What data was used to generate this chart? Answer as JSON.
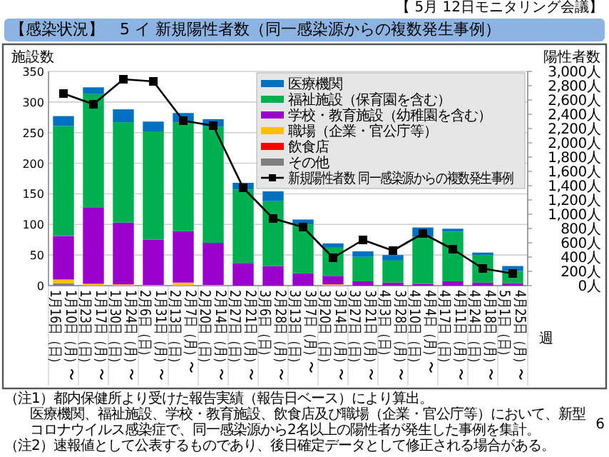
{
  "chart_data": {
    "type": "bar",
    "stacked": true,
    "title": "【感染状況】　5 イ 新規陽性者数（同一感染源からの複数発生事例）",
    "subtitle": "【 5月 12日モニタリング会議】",
    "ylabel": "施設数",
    "y2label": "陽性者数",
    "xlabel": "週",
    "categories": [
      "1月10日（月）〜\n1月16日（日）",
      "1月17日（月）〜\n1月23日（日）",
      "1月24日（月）〜\n1月30日（日）",
      "1月31日（月）〜\n2月6日（日）",
      "2月7日（月）〜\n2月13日（日）",
      "2月14日（月）〜\n2月20日（日）",
      "2月21日（月）〜\n2月27日（日）",
      "2月28日（月）〜\n3月6日（日）",
      "3月7日（月）〜\n3月13日（日）",
      "3月14日（月）〜\n3月20日（日）",
      "3月21日（月）〜\n3月27日（日）",
      "3月28日（月）〜\n4月3日（日）",
      "4月4日（月）〜\n4月10日（日）",
      "4月11日（月）〜\n4月17日（日）",
      "4月18日（月）〜\n4月24日（日）",
      "4月25日（月）〜\n5月1日（日）"
    ],
    "series": [
      {
        "name": "その他",
        "color": "#7f7f7f",
        "values": [
          4,
          0,
          0,
          0,
          0,
          0,
          0,
          0,
          0,
          0,
          0,
          0,
          0,
          0,
          0,
          0
        ]
      },
      {
        "name": "飲食店",
        "color": "#ff0000",
        "values": [
          0,
          0,
          0,
          0,
          0,
          0,
          0,
          0,
          0,
          0,
          0,
          0,
          0,
          0,
          0,
          0
        ]
      },
      {
        "name": "職場（企業・官公庁等）",
        "color": "#ffc000",
        "values": [
          6,
          3,
          2,
          1,
          5,
          1,
          0,
          0,
          0,
          2,
          0,
          0,
          0,
          0,
          0,
          0
        ]
      },
      {
        "name": "学校・教育施設（幼稚園を含む）",
        "color": "#9900cc",
        "values": [
          71,
          125,
          101,
          74,
          84,
          69,
          37,
          32,
          20,
          14,
          7,
          5,
          3,
          7,
          5,
          4
        ]
      },
      {
        "name": "福祉施設（保育園を含む）",
        "color": "#00b050",
        "values": [
          180,
          185,
          164,
          177,
          178,
          190,
          120,
          106,
          80,
          46,
          40,
          36,
          77,
          81,
          45,
          20
        ]
      },
      {
        "name": "医療機関",
        "color": "#0070c0",
        "values": [
          16,
          11,
          21,
          16,
          15,
          12,
          11,
          16,
          8,
          7,
          9,
          9,
          15,
          5,
          4,
          8
        ]
      },
      {
        "name": "新規陽性者数 同一感染源からの複数発生事例",
        "type": "line",
        "axis": "y2",
        "color": "#000000",
        "values": [
          2690,
          2540,
          2890,
          2860,
          2310,
          2240,
          1370,
          940,
          820,
          390,
          640,
          490,
          730,
          510,
          240,
          170
        ]
      }
    ],
    "marker": "square",
    "ylim": [
      0,
      350
    ],
    "yticks": [
      0,
      50,
      100,
      150,
      200,
      250,
      300,
      350
    ],
    "y2lim": [
      0,
      3000
    ],
    "y2ticks": [
      {
        "value": 0,
        "label": "0人"
      },
      {
        "value": 200,
        "label": "200人"
      },
      {
        "value": 400,
        "label": "400人"
      },
      {
        "value": 600,
        "label": "600人"
      },
      {
        "value": 800,
        "label": "800人"
      },
      {
        "value": 1000,
        "label": "1,000人"
      },
      {
        "value": 1200,
        "label": "1,200人"
      },
      {
        "value": 1400,
        "label": "1,400人"
      },
      {
        "value": 1600,
        "label": "1,600人"
      },
      {
        "value": 1800,
        "label": "1,800人"
      },
      {
        "value": 2000,
        "label": "2,000人"
      },
      {
        "value": 2200,
        "label": "2,200人"
      },
      {
        "value": 2400,
        "label": "2,400人"
      },
      {
        "value": 2600,
        "label": "2,600人"
      },
      {
        "value": 2800,
        "label": "2,800人"
      },
      {
        "value": 3000,
        "label": "3,000人"
      }
    ],
    "grid": "y",
    "legend": "top right",
    "annotations": [
      "（注1）都内保健所より受けた報告実績（報告日ベース）により算出。",
      "医療機関、福祉施設、学校・教育施設、飲食店及び職場（企業・官公庁等）において、新型コロナウイルス感染症で、同一感染源から2名以上の陽性者が発生した事例を集計。",
      "（注2）速報値として公表するものであり、後日確定データとして修正される場合がある。",
      "6"
    ]
  }
}
